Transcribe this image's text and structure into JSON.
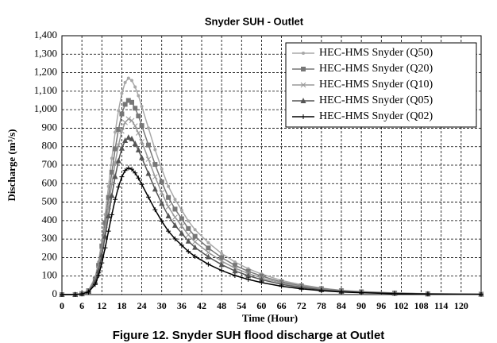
{
  "chart_data": {
    "type": "line",
    "title": "Snyder SUH - Outlet",
    "x_label": "Time (Hour)",
    "y_label": "Discharge (m³/s)",
    "caption": "Figure 12. Snyder SUH flood discharge at Outlet",
    "x": [
      0,
      4,
      6,
      8,
      10,
      11,
      12,
      13,
      14,
      15,
      16,
      17,
      18,
      19,
      20,
      21,
      22,
      23,
      24,
      26,
      28,
      30,
      32,
      34,
      36,
      38,
      40,
      44,
      48,
      52,
      56,
      60,
      66,
      72,
      78,
      84,
      90,
      100,
      110,
      126
    ],
    "series": [
      {
        "name": "HEC-HMS Snyder (Q50)",
        "color": "#a8a8a8",
        "marker": "circle",
        "values": [
          0,
          0,
          6,
          23,
          94,
          176,
          293,
          433,
          585,
          737,
          878,
          995,
          1088,
          1147,
          1170,
          1158,
          1123,
          1076,
          1018,
          901,
          784,
          679,
          585,
          515,
          456,
          398,
          351,
          281,
          222,
          176,
          140,
          111,
          76,
          53,
          35,
          23,
          16,
          9,
          5,
          2
        ]
      },
      {
        "name": "HEC-HMS Snyder (Q20)",
        "color": "#777777",
        "marker": "square",
        "values": [
          0,
          0,
          5,
          21,
          84,
          158,
          263,
          389,
          525,
          662,
          788,
          893,
          977,
          1029,
          1050,
          1040,
          1008,
          966,
          914,
          809,
          704,
          609,
          525,
          462,
          410,
          357,
          315,
          252,
          200,
          158,
          126,
          100,
          68,
          47,
          32,
          21,
          15,
          8,
          4,
          2
        ]
      },
      {
        "name": "HEC-HMS Snyder (Q10)",
        "color": "#999999",
        "marker": "cross",
        "values": [
          0,
          0,
          5,
          19,
          76,
          143,
          238,
          352,
          475,
          599,
          713,
          808,
          884,
          931,
          950,
          941,
          912,
          874,
          827,
          732,
          637,
          551,
          475,
          418,
          371,
          323,
          285,
          228,
          181,
          143,
          114,
          90,
          62,
          43,
          29,
          19,
          13,
          8,
          4,
          2
        ]
      },
      {
        "name": "HEC-HMS Snyder (Q05)",
        "color": "#555555",
        "marker": "triangle",
        "values": [
          0,
          0,
          4,
          17,
          68,
          128,
          213,
          315,
          425,
          536,
          638,
          723,
          791,
          833,
          850,
          842,
          816,
          782,
          740,
          655,
          570,
          493,
          425,
          374,
          332,
          289,
          255,
          204,
          162,
          128,
          102,
          81,
          55,
          38,
          26,
          17,
          12,
          7,
          3,
          2
        ]
      },
      {
        "name": "HEC-HMS Snyder (Q02)",
        "color": "#000000",
        "marker": "plus",
        "values": [
          0,
          0,
          3,
          14,
          55,
          103,
          171,
          253,
          343,
          432,
          514,
          582,
          637,
          671,
          685,
          678,
          658,
          630,
          596,
          527,
          459,
          397,
          343,
          301,
          267,
          233,
          206,
          164,
          130,
          103,
          82,
          65,
          45,
          31,
          21,
          14,
          10,
          5,
          3,
          1
        ]
      }
    ],
    "xlim": [
      0,
      126
    ],
    "xticks": [
      0,
      6,
      12,
      18,
      24,
      30,
      36,
      42,
      48,
      54,
      60,
      66,
      72,
      78,
      84,
      90,
      96,
      102,
      108,
      114,
      120
    ],
    "ylim": [
      0,
      1400
    ],
    "yticks": [
      0,
      100,
      200,
      300,
      400,
      500,
      600,
      700,
      800,
      900,
      {
        "value": 1000,
        "label": "1,000"
      },
      {
        "value": 1100,
        "label": "1,100"
      },
      {
        "value": 1200,
        "label": "1,200"
      },
      {
        "value": 1300,
        "label": "1,300"
      },
      {
        "value": 1400,
        "label": "1,400"
      }
    ],
    "grid": true,
    "legend": "upper right"
  }
}
